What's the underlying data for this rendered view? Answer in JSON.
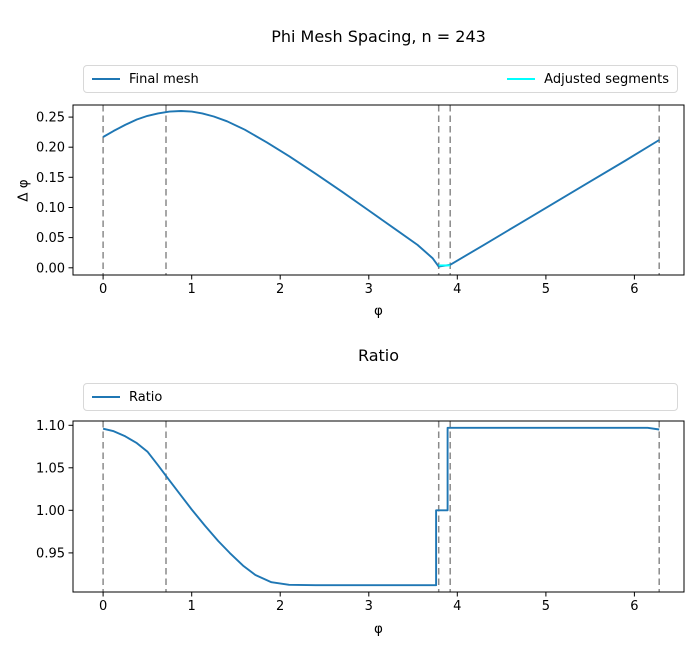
{
  "figure": {
    "background": "#ffffff",
    "text_color": "#000000",
    "spine_color": "#000000"
  },
  "chart_data": [
    {
      "type": "line",
      "title": "Phi Mesh Spacing, n = 243",
      "xlabel": "φ",
      "ylabel": "Δ φ",
      "grid": false,
      "legend_position": "above-full-width",
      "legend_entries": [
        "Final mesh",
        "Adjusted segments"
      ],
      "xlim": [
        -0.34,
        6.56
      ],
      "ylim": [
        -0.012,
        0.27
      ],
      "xticks": {
        "values": [
          0,
          1,
          2,
          3,
          4,
          5,
          6
        ],
        "labels": [
          "0",
          "1",
          "2",
          "3",
          "4",
          "5",
          "6"
        ]
      },
      "yticks": {
        "values": [
          0.0,
          0.05,
          0.1,
          0.15,
          0.2,
          0.25
        ],
        "labels": [
          "0.00",
          "0.05",
          "0.10",
          "0.15",
          "0.20",
          "0.25"
        ]
      },
      "vlines": {
        "x": [
          0,
          0.71,
          3.79,
          3.92,
          6.28
        ],
        "color": "#8a8a8a",
        "style": "dashed"
      },
      "series": [
        {
          "name": "Final mesh",
          "color": "#1f77b4",
          "points": [
            [
              0.0,
              0.217
            ],
            [
              0.12,
              0.227
            ],
            [
              0.25,
              0.237
            ],
            [
              0.38,
              0.246
            ],
            [
              0.5,
              0.252
            ],
            [
              0.62,
              0.256
            ],
            [
              0.75,
              0.259
            ],
            [
              0.88,
              0.26
            ],
            [
              1.0,
              0.259
            ],
            [
              1.12,
              0.256
            ],
            [
              1.25,
              0.251
            ],
            [
              1.4,
              0.243
            ],
            [
              1.6,
              0.229
            ],
            [
              1.85,
              0.208
            ],
            [
              2.1,
              0.185
            ],
            [
              2.4,
              0.156
            ],
            [
              2.7,
              0.126
            ],
            [
              3.0,
              0.095
            ],
            [
              3.3,
              0.064
            ],
            [
              3.55,
              0.038
            ],
            [
              3.72,
              0.016
            ],
            [
              3.79,
              0.002
            ],
            [
              3.92,
              0.005
            ],
            [
              4.3,
              0.038
            ],
            [
              4.7,
              0.073
            ],
            [
              5.1,
              0.108
            ],
            [
              5.5,
              0.143
            ],
            [
              5.9,
              0.178
            ],
            [
              6.28,
              0.212
            ]
          ]
        },
        {
          "name": "Adjusted segments",
          "color": "#00ffff",
          "points": [
            [
              3.79,
              0.004
            ],
            [
              3.92,
              0.004
            ]
          ]
        }
      ]
    },
    {
      "type": "line",
      "title": "Ratio",
      "xlabel": "φ",
      "ylabel": "",
      "grid": false,
      "legend_position": "above-full-width",
      "legend_entries": [
        "Ratio"
      ],
      "xlim": [
        -0.34,
        6.56
      ],
      "ylim": [
        0.904,
        1.105
      ],
      "xticks": {
        "values": [
          0,
          1,
          2,
          3,
          4,
          5,
          6
        ],
        "labels": [
          "0",
          "1",
          "2",
          "3",
          "4",
          "5",
          "6"
        ]
      },
      "yticks": {
        "values": [
          0.95,
          1.0,
          1.05,
          1.1
        ],
        "labels": [
          "0.95",
          "1.00",
          "1.05",
          "1.10"
        ]
      },
      "vlines": {
        "x": [
          0,
          0.71,
          3.79,
          3.92,
          6.28
        ],
        "color": "#8a8a8a",
        "style": "dashed"
      },
      "series": [
        {
          "name": "Ratio",
          "color": "#1f77b4",
          "points": [
            [
              0.0,
              1.096
            ],
            [
              0.12,
              1.093
            ],
            [
              0.25,
              1.087
            ],
            [
              0.38,
              1.079
            ],
            [
              0.5,
              1.069
            ],
            [
              0.62,
              1.053
            ],
            [
              0.72,
              1.039
            ],
            [
              0.86,
              1.02
            ],
            [
              1.0,
              1.001
            ],
            [
              1.15,
              0.982
            ],
            [
              1.3,
              0.964
            ],
            [
              1.43,
              0.95
            ],
            [
              1.58,
              0.935
            ],
            [
              1.72,
              0.924
            ],
            [
              1.9,
              0.9155
            ],
            [
              2.1,
              0.9125
            ],
            [
              2.4,
              0.912
            ],
            [
              3.0,
              0.912
            ],
            [
              3.5,
              0.912
            ],
            [
              3.76,
              0.912
            ],
            [
              3.76,
              1.0
            ],
            [
              3.89,
              1.0
            ],
            [
              3.89,
              1.097
            ],
            [
              4.1,
              1.097
            ],
            [
              4.6,
              1.097
            ],
            [
              5.2,
              1.097
            ],
            [
              5.8,
              1.097
            ],
            [
              6.15,
              1.097
            ],
            [
              6.28,
              1.095
            ]
          ]
        }
      ]
    }
  ]
}
